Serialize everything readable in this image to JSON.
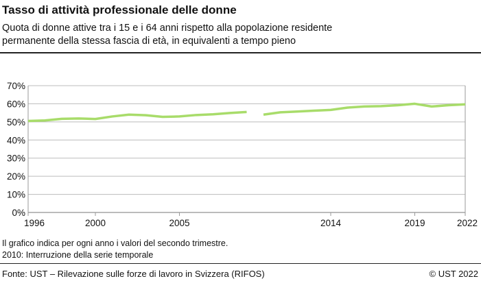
{
  "title": "Tasso di attività professionale delle donne",
  "subtitle_line1": "Quota di donne attive tra i 15 e i 64 anni rispetto alla popolazione residente",
  "subtitle_line2": "permanente della stessa fascia di età, in equivalenti a tempo pieno",
  "notes": [
    "Il grafico indica per ogni anno i valori del secondo trimestre.",
    "2010: Interruzione della serie temporale"
  ],
  "footer": {
    "source": "Fonte: UST – Rilevazione sulle forze di lavoro in Svizzera (RIFOS)",
    "copyright": "© UST 2022"
  },
  "chart_data": {
    "type": "line",
    "xlim": [
      1996,
      2022
    ],
    "ylim": [
      0,
      70
    ],
    "x_ticks": [
      "1996",
      "2000",
      "2005",
      "2014",
      "2019",
      "2022"
    ],
    "y_ticks": [
      "0%",
      "10%",
      "20%",
      "30%",
      "40%",
      "50%",
      "60%",
      "70%"
    ],
    "grid": true,
    "color": "#a8dc6a",
    "series": [
      {
        "segment": 1,
        "x": [
          1996,
          1997,
          1998,
          1999,
          2000,
          2001,
          2002,
          2003,
          2004,
          2005,
          2006,
          2007,
          2008,
          2009
        ],
        "values": [
          50.5,
          50.8,
          51.7,
          51.9,
          51.6,
          53.0,
          54.0,
          53.7,
          52.8,
          53.0,
          53.8,
          54.2,
          54.9,
          55.5
        ]
      },
      {
        "segment": 2,
        "x": [
          2010,
          2011,
          2012,
          2013,
          2014,
          2015,
          2016,
          2017,
          2018,
          2019,
          2020,
          2021,
          2022
        ],
        "values": [
          54.0,
          55.3,
          55.7,
          56.2,
          56.6,
          57.9,
          58.5,
          58.7,
          59.2,
          60.0,
          58.5,
          59.2,
          59.7
        ]
      }
    ]
  }
}
